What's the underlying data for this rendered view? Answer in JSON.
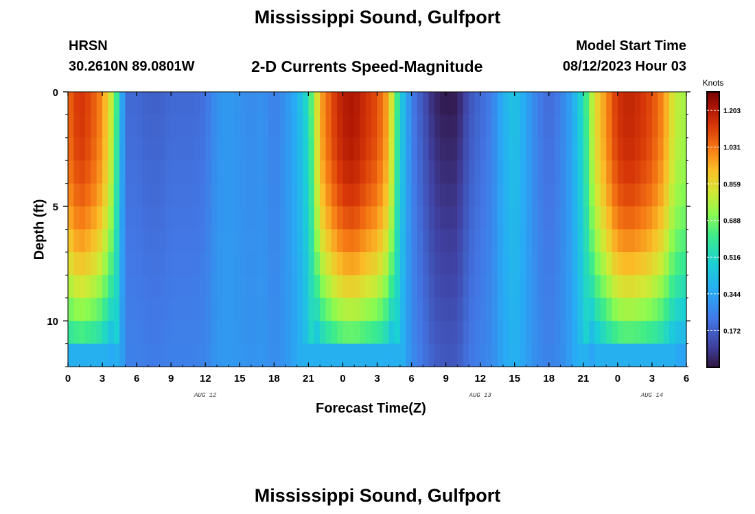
{
  "page": {
    "title": "Mississippi Sound, Gulfport",
    "station_id": "HRSN",
    "coordinates": "30.2610N  89.0801W",
    "subtitle": "2-D Currents Speed-Magnitude",
    "model_start_label": "Model Start Time",
    "model_start_value": "08/12/2023 Hour 03",
    "footer_title": "Mississippi Sound, Gulfport"
  },
  "chart_data": {
    "type": "heatmap",
    "title": "2-D Currents Speed-Magnitude",
    "xlabel": "Forecast Time(Z)",
    "ylabel": "Depth (ft)",
    "x_hours_range": [
      0,
      54
    ],
    "x_tick_labels": [
      "0",
      "3",
      "6",
      "9",
      "12",
      "15",
      "18",
      "21",
      "0",
      "3",
      "6",
      "9",
      "12",
      "15",
      "18",
      "21",
      "0",
      "3",
      "6"
    ],
    "date_labels": [
      {
        "text": "AUG 12",
        "hour": 12
      },
      {
        "text": "AUG 13",
        "hour": 36
      },
      {
        "text": "AUG 14",
        "hour": 51
      }
    ],
    "y_range": [
      0,
      12
    ],
    "y_ticks": [
      "0",
      "5",
      "10"
    ],
    "colorbar": {
      "units": "Knots",
      "min": 0.0,
      "max": 1.29,
      "ticks": [
        "1.203",
        "1.031",
        "0.859",
        "0.688",
        "0.516",
        "0.344",
        "0.172"
      ]
    },
    "depth_profile_levels": 12,
    "surface_speed_by_hour": [
      [
        0,
        1.05
      ],
      [
        1,
        1.15
      ],
      [
        2,
        1.1
      ],
      [
        3,
        1.0
      ],
      [
        4,
        0.75
      ],
      [
        5,
        0.2
      ],
      [
        6,
        0.2
      ],
      [
        7,
        0.18
      ],
      [
        8,
        0.18
      ],
      [
        9,
        0.2
      ],
      [
        10,
        0.2
      ],
      [
        11,
        0.2
      ],
      [
        12,
        0.22
      ],
      [
        13,
        0.3
      ],
      [
        14,
        0.32
      ],
      [
        15,
        0.3
      ],
      [
        16,
        0.28
      ],
      [
        17,
        0.3
      ],
      [
        18,
        0.25
      ],
      [
        19,
        0.3
      ],
      [
        20,
        0.38
      ],
      [
        21,
        0.55
      ],
      [
        22,
        0.95
      ],
      [
        23,
        1.1
      ],
      [
        24,
        1.2
      ],
      [
        25,
        1.22
      ],
      [
        26,
        1.15
      ],
      [
        27,
        1.1
      ],
      [
        28,
        0.95
      ],
      [
        29,
        0.5
      ],
      [
        30,
        0.25
      ],
      [
        31,
        0.15
      ],
      [
        32,
        0.05
      ],
      [
        33,
        0.02
      ],
      [
        34,
        0.03
      ],
      [
        35,
        0.15
      ],
      [
        36,
        0.2
      ],
      [
        37,
        0.25
      ],
      [
        38,
        0.38
      ],
      [
        39,
        0.45
      ],
      [
        40,
        0.35
      ],
      [
        41,
        0.25
      ],
      [
        42,
        0.2
      ],
      [
        43,
        0.25
      ],
      [
        44,
        0.35
      ],
      [
        45,
        0.55
      ],
      [
        46,
        0.85
      ],
      [
        47,
        1.0
      ],
      [
        48,
        1.15
      ],
      [
        49,
        1.18
      ],
      [
        50,
        1.15
      ],
      [
        51,
        1.1
      ],
      [
        52,
        1.0
      ],
      [
        53,
        0.8
      ],
      [
        54,
        0.75
      ]
    ],
    "colors": {
      "low": "#30123b",
      "mid": "#1bd0d5",
      "high": "#7a0403"
    }
  }
}
